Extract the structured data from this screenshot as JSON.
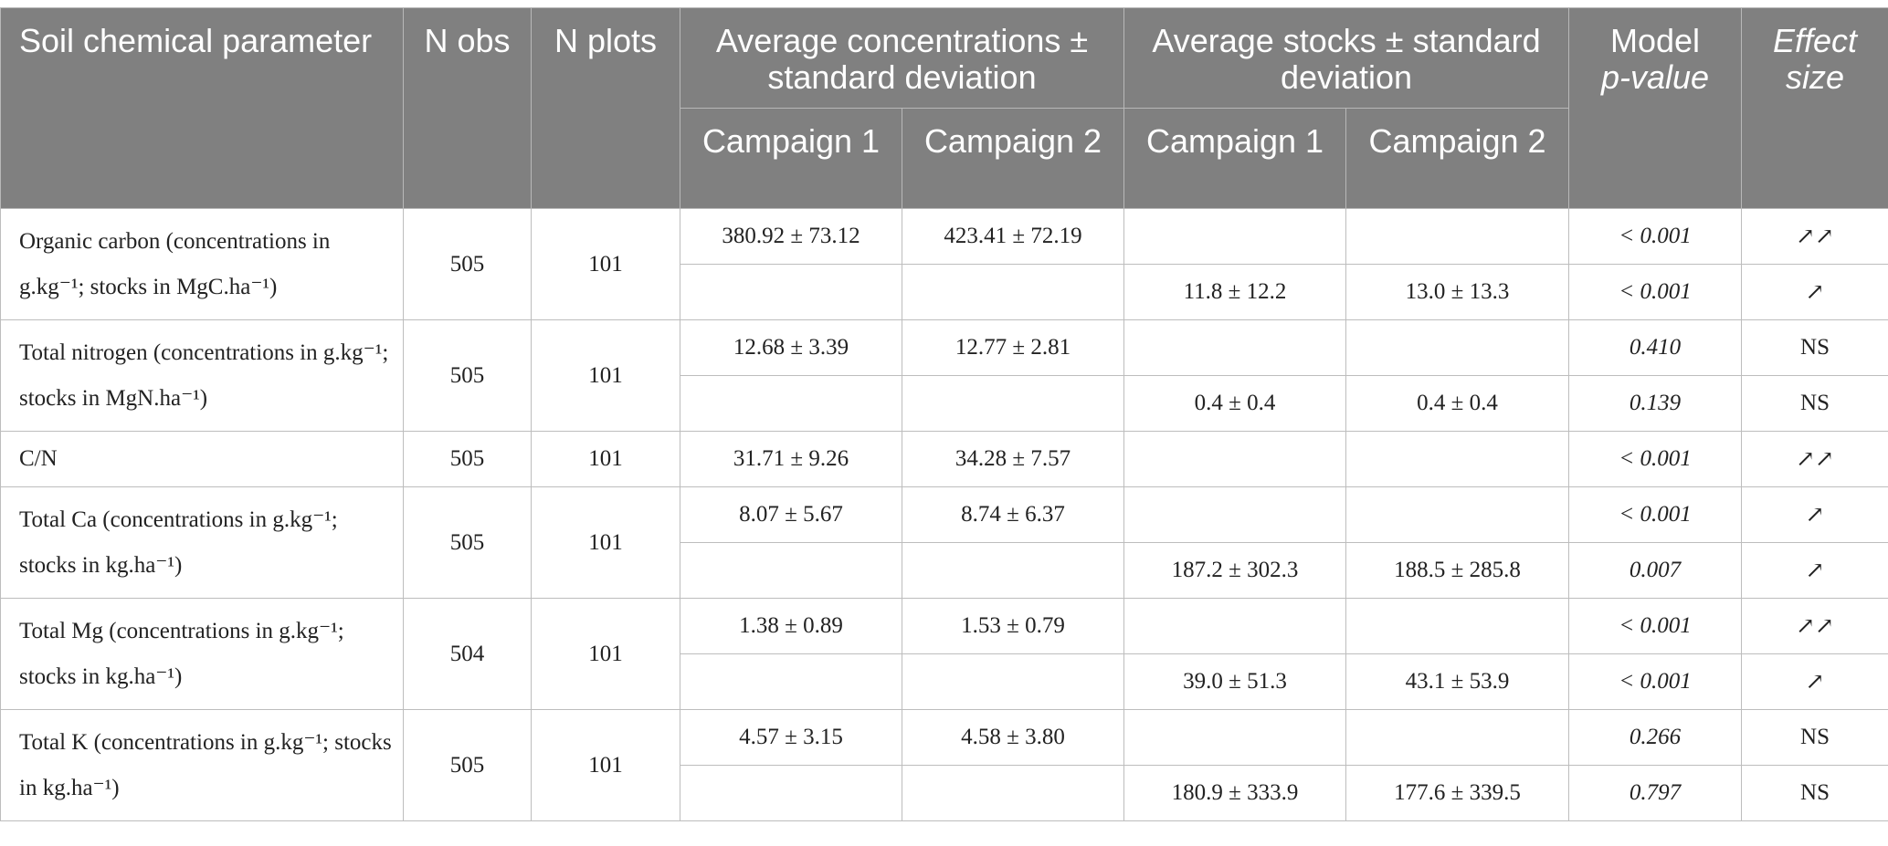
{
  "header": {
    "parameter": "Soil chemical parameter",
    "n_obs": "N obs",
    "n_plots": "N plots",
    "avg_conc": "Average concentrations ± standard deviation",
    "avg_stocks": "Average stocks ± standard deviation",
    "model_label": "Model",
    "model_pvalue": "p-value",
    "effect_size": "Effect size",
    "campaign1": "Campaign 1",
    "campaign2": "Campaign 2"
  },
  "rows": [
    {
      "name": "Organic carbon (concentrations in g.kg⁻¹; stocks in MgC.ha⁻¹)",
      "n_obs": "505",
      "n_plots": "101",
      "conc": {
        "c1": "380.92 ± 73.12",
        "c2": "423.41 ± 72.19",
        "p": "< 0.001",
        "effect": "↗↗"
      },
      "stock": {
        "c1": "11.8 ± 12.2",
        "c2": "13.0 ± 13.3",
        "p": "< 0.001",
        "effect": "↗"
      }
    },
    {
      "name": "Total nitrogen (concentrations in g.kg⁻¹; stocks in MgN.ha⁻¹)",
      "n_obs": "505",
      "n_plots": "101",
      "conc": {
        "c1": "12.68 ± 3.39",
        "c2": "12.77 ± 2.81",
        "p": "0.410",
        "effect": "NS"
      },
      "stock": {
        "c1": "0.4 ± 0.4",
        "c2": "0.4 ± 0.4",
        "p": "0.139",
        "effect": "NS"
      }
    },
    {
      "name": "C/N",
      "n_obs": "505",
      "n_plots": "101",
      "conc": {
        "c1": "31.71 ± 9.26",
        "c2": "34.28 ± 7.57",
        "p": "< 0.001",
        "effect": "↗↗"
      }
    },
    {
      "name": "Total Ca (concentrations in g.kg⁻¹; stocks in kg.ha⁻¹)",
      "n_obs": "505",
      "n_plots": "101",
      "conc": {
        "c1": "8.07 ± 5.67",
        "c2": "8.74 ± 6.37",
        "p": "< 0.001",
        "effect": "↗"
      },
      "stock": {
        "c1": "187.2 ± 302.3",
        "c2": "188.5 ± 285.8",
        "p": "0.007",
        "effect": "↗"
      }
    },
    {
      "name": "Total Mg (concentrations in g.kg⁻¹; stocks in kg.ha⁻¹)",
      "n_obs": "504",
      "n_plots": "101",
      "conc": {
        "c1": "1.38 ± 0.89",
        "c2": "1.53 ± 0.79",
        "p": "< 0.001",
        "effect": "↗↗"
      },
      "stock": {
        "c1": "39.0 ± 51.3",
        "c2": "43.1 ± 53.9",
        "p": "< 0.001",
        "effect": "↗"
      }
    },
    {
      "name": "Total K (concentrations in g.kg⁻¹; stocks in kg.ha⁻¹)",
      "n_obs": "505",
      "n_plots": "101",
      "conc": {
        "c1": "4.57 ± 3.15",
        "c2": "4.58 ± 3.80",
        "p": "0.266",
        "effect": "NS"
      },
      "stock": {
        "c1": "180.9 ± 333.9",
        "c2": "177.6 ± 339.5",
        "p": "0.797",
        "effect": "NS"
      }
    }
  ]
}
